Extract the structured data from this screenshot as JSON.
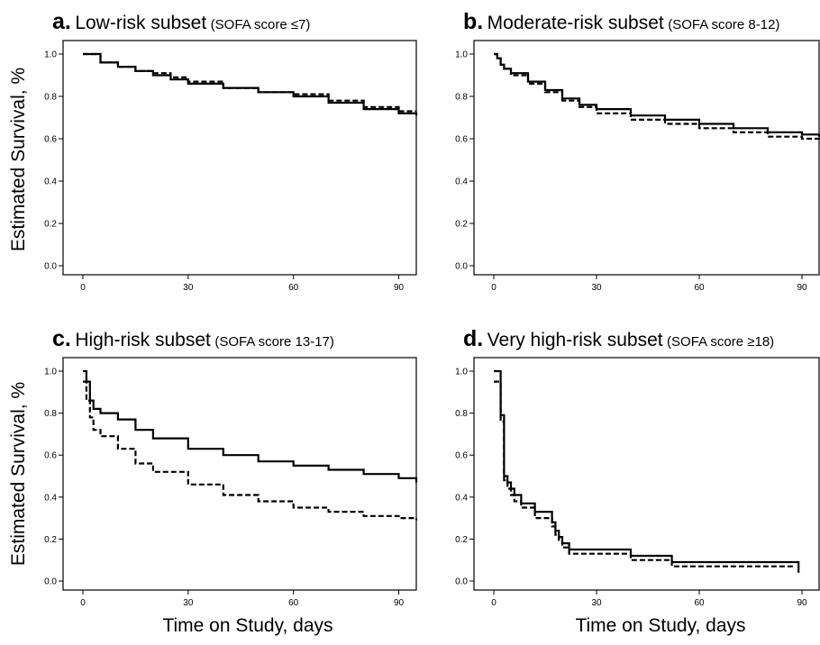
{
  "figure": {
    "ylabel": "Estimated Survival, %",
    "xlabel": "Time on Study, days"
  },
  "panels": [
    {
      "letter": "a.",
      "title": "Low-risk subset",
      "subtitle": "(SOFA score ≤7)"
    },
    {
      "letter": "b.",
      "title": "Moderate-risk subset",
      "subtitle": "(SOFA score 8-12)"
    },
    {
      "letter": "c.",
      "title": "High-risk subset",
      "subtitle": "(SOFA score 13-17)"
    },
    {
      "letter": "d.",
      "title": "Very high-risk subset",
      "subtitle": "(SOFA score ≥18)"
    }
  ],
  "chart_data": [
    {
      "type": "line",
      "title": "Low-risk subset (SOFA score ≤7)",
      "xlabel": "Time on Study, days",
      "ylabel": "Estimated Survival, %",
      "xlim": [
        0,
        95
      ],
      "ylim": [
        0,
        1.0
      ],
      "xticks": [
        "0",
        "30",
        "60",
        "90"
      ],
      "yticks": [
        "0.0",
        "0.2",
        "0.4",
        "0.6",
        "0.8",
        "1.0"
      ],
      "series": [
        {
          "style": "solid",
          "x": [
            0,
            5,
            10,
            15,
            20,
            25,
            30,
            40,
            50,
            60,
            70,
            80,
            90,
            95
          ],
          "y": [
            1.0,
            0.96,
            0.94,
            0.92,
            0.9,
            0.88,
            0.86,
            0.84,
            0.82,
            0.8,
            0.77,
            0.74,
            0.72,
            0.71
          ]
        },
        {
          "style": "dashed",
          "x": [
            0,
            5,
            10,
            15,
            20,
            25,
            30,
            40,
            50,
            60,
            70,
            80,
            90,
            95
          ],
          "y": [
            1.0,
            0.96,
            0.94,
            0.92,
            0.91,
            0.89,
            0.87,
            0.84,
            0.82,
            0.81,
            0.78,
            0.75,
            0.73,
            0.73
          ]
        }
      ]
    },
    {
      "type": "line",
      "title": "Moderate-risk subset (SOFA score 8-12)",
      "xlabel": "Time on Study, days",
      "ylabel": "Estimated Survival, %",
      "xlim": [
        0,
        95
      ],
      "ylim": [
        0,
        1.0
      ],
      "xticks": [
        "0",
        "30",
        "60",
        "90"
      ],
      "yticks": [
        "0.0",
        "0.2",
        "0.4",
        "0.6",
        "0.8",
        "1.0"
      ],
      "series": [
        {
          "style": "solid",
          "x": [
            0,
            1,
            2,
            3,
            5,
            10,
            15,
            20,
            25,
            30,
            40,
            50,
            60,
            70,
            80,
            90,
            95
          ],
          "y": [
            1.0,
            0.98,
            0.95,
            0.93,
            0.91,
            0.87,
            0.83,
            0.79,
            0.76,
            0.74,
            0.71,
            0.69,
            0.67,
            0.65,
            0.63,
            0.62,
            0.61
          ]
        },
        {
          "style": "dashed",
          "x": [
            0,
            1,
            2,
            3,
            5,
            10,
            15,
            20,
            25,
            30,
            40,
            50,
            60,
            70,
            80,
            90,
            95
          ],
          "y": [
            1.0,
            0.98,
            0.95,
            0.93,
            0.9,
            0.86,
            0.82,
            0.78,
            0.75,
            0.72,
            0.69,
            0.67,
            0.65,
            0.63,
            0.61,
            0.6,
            0.59
          ]
        }
      ]
    },
    {
      "type": "line",
      "title": "High-risk subset (SOFA score 13-17)",
      "xlabel": "Time on Study, days",
      "ylabel": "Estimated Survival, %",
      "xlim": [
        0,
        95
      ],
      "ylim": [
        0,
        1.0
      ],
      "xticks": [
        "0",
        "30",
        "60",
        "90"
      ],
      "yticks": [
        "0.0",
        "0.2",
        "0.4",
        "0.6",
        "0.8",
        "1.0"
      ],
      "series": [
        {
          "style": "solid",
          "x": [
            0,
            1,
            2,
            3,
            5,
            10,
            15,
            20,
            30,
            40,
            50,
            60,
            70,
            80,
            90,
            95
          ],
          "y": [
            1.0,
            0.95,
            0.86,
            0.82,
            0.8,
            0.77,
            0.72,
            0.68,
            0.63,
            0.6,
            0.57,
            0.55,
            0.53,
            0.51,
            0.49,
            0.47
          ]
        },
        {
          "style": "dashed",
          "x": [
            0,
            1,
            2,
            3,
            5,
            10,
            15,
            20,
            30,
            40,
            50,
            60,
            70,
            80,
            90,
            95
          ],
          "y": [
            0.95,
            0.86,
            0.78,
            0.72,
            0.69,
            0.63,
            0.56,
            0.52,
            0.46,
            0.41,
            0.38,
            0.35,
            0.33,
            0.31,
            0.3,
            0.29
          ]
        }
      ]
    },
    {
      "type": "line",
      "title": "Very high-risk subset (SOFA score ≥18)",
      "xlabel": "Time on Study, days",
      "ylabel": "Estimated Survival, %",
      "xlim": [
        0,
        95
      ],
      "ylim": [
        0,
        1.0
      ],
      "xticks": [
        "0",
        "30",
        "60",
        "90"
      ],
      "yticks": [
        "0.0",
        "0.2",
        "0.4",
        "0.6",
        "0.8",
        "1.0"
      ],
      "series": [
        {
          "style": "solid",
          "x": [
            0,
            1,
            2,
            3,
            4,
            5,
            6,
            8,
            12,
            17,
            18,
            19,
            20,
            22,
            25,
            40,
            52,
            88,
            89
          ],
          "y": [
            1.0,
            1.0,
            0.79,
            0.5,
            0.47,
            0.44,
            0.41,
            0.37,
            0.33,
            0.28,
            0.24,
            0.21,
            0.18,
            0.15,
            0.15,
            0.12,
            0.09,
            0.09,
            0.04
          ]
        },
        {
          "style": "dashed",
          "x": [
            0,
            1,
            2,
            3,
            4,
            5,
            6,
            8,
            12,
            17,
            18,
            19,
            20,
            22,
            25,
            40,
            52,
            88
          ],
          "y": [
            0.95,
            0.95,
            0.76,
            0.48,
            0.44,
            0.41,
            0.38,
            0.35,
            0.3,
            0.26,
            0.22,
            0.19,
            0.16,
            0.13,
            0.13,
            0.1,
            0.07,
            0.07
          ]
        }
      ]
    }
  ]
}
